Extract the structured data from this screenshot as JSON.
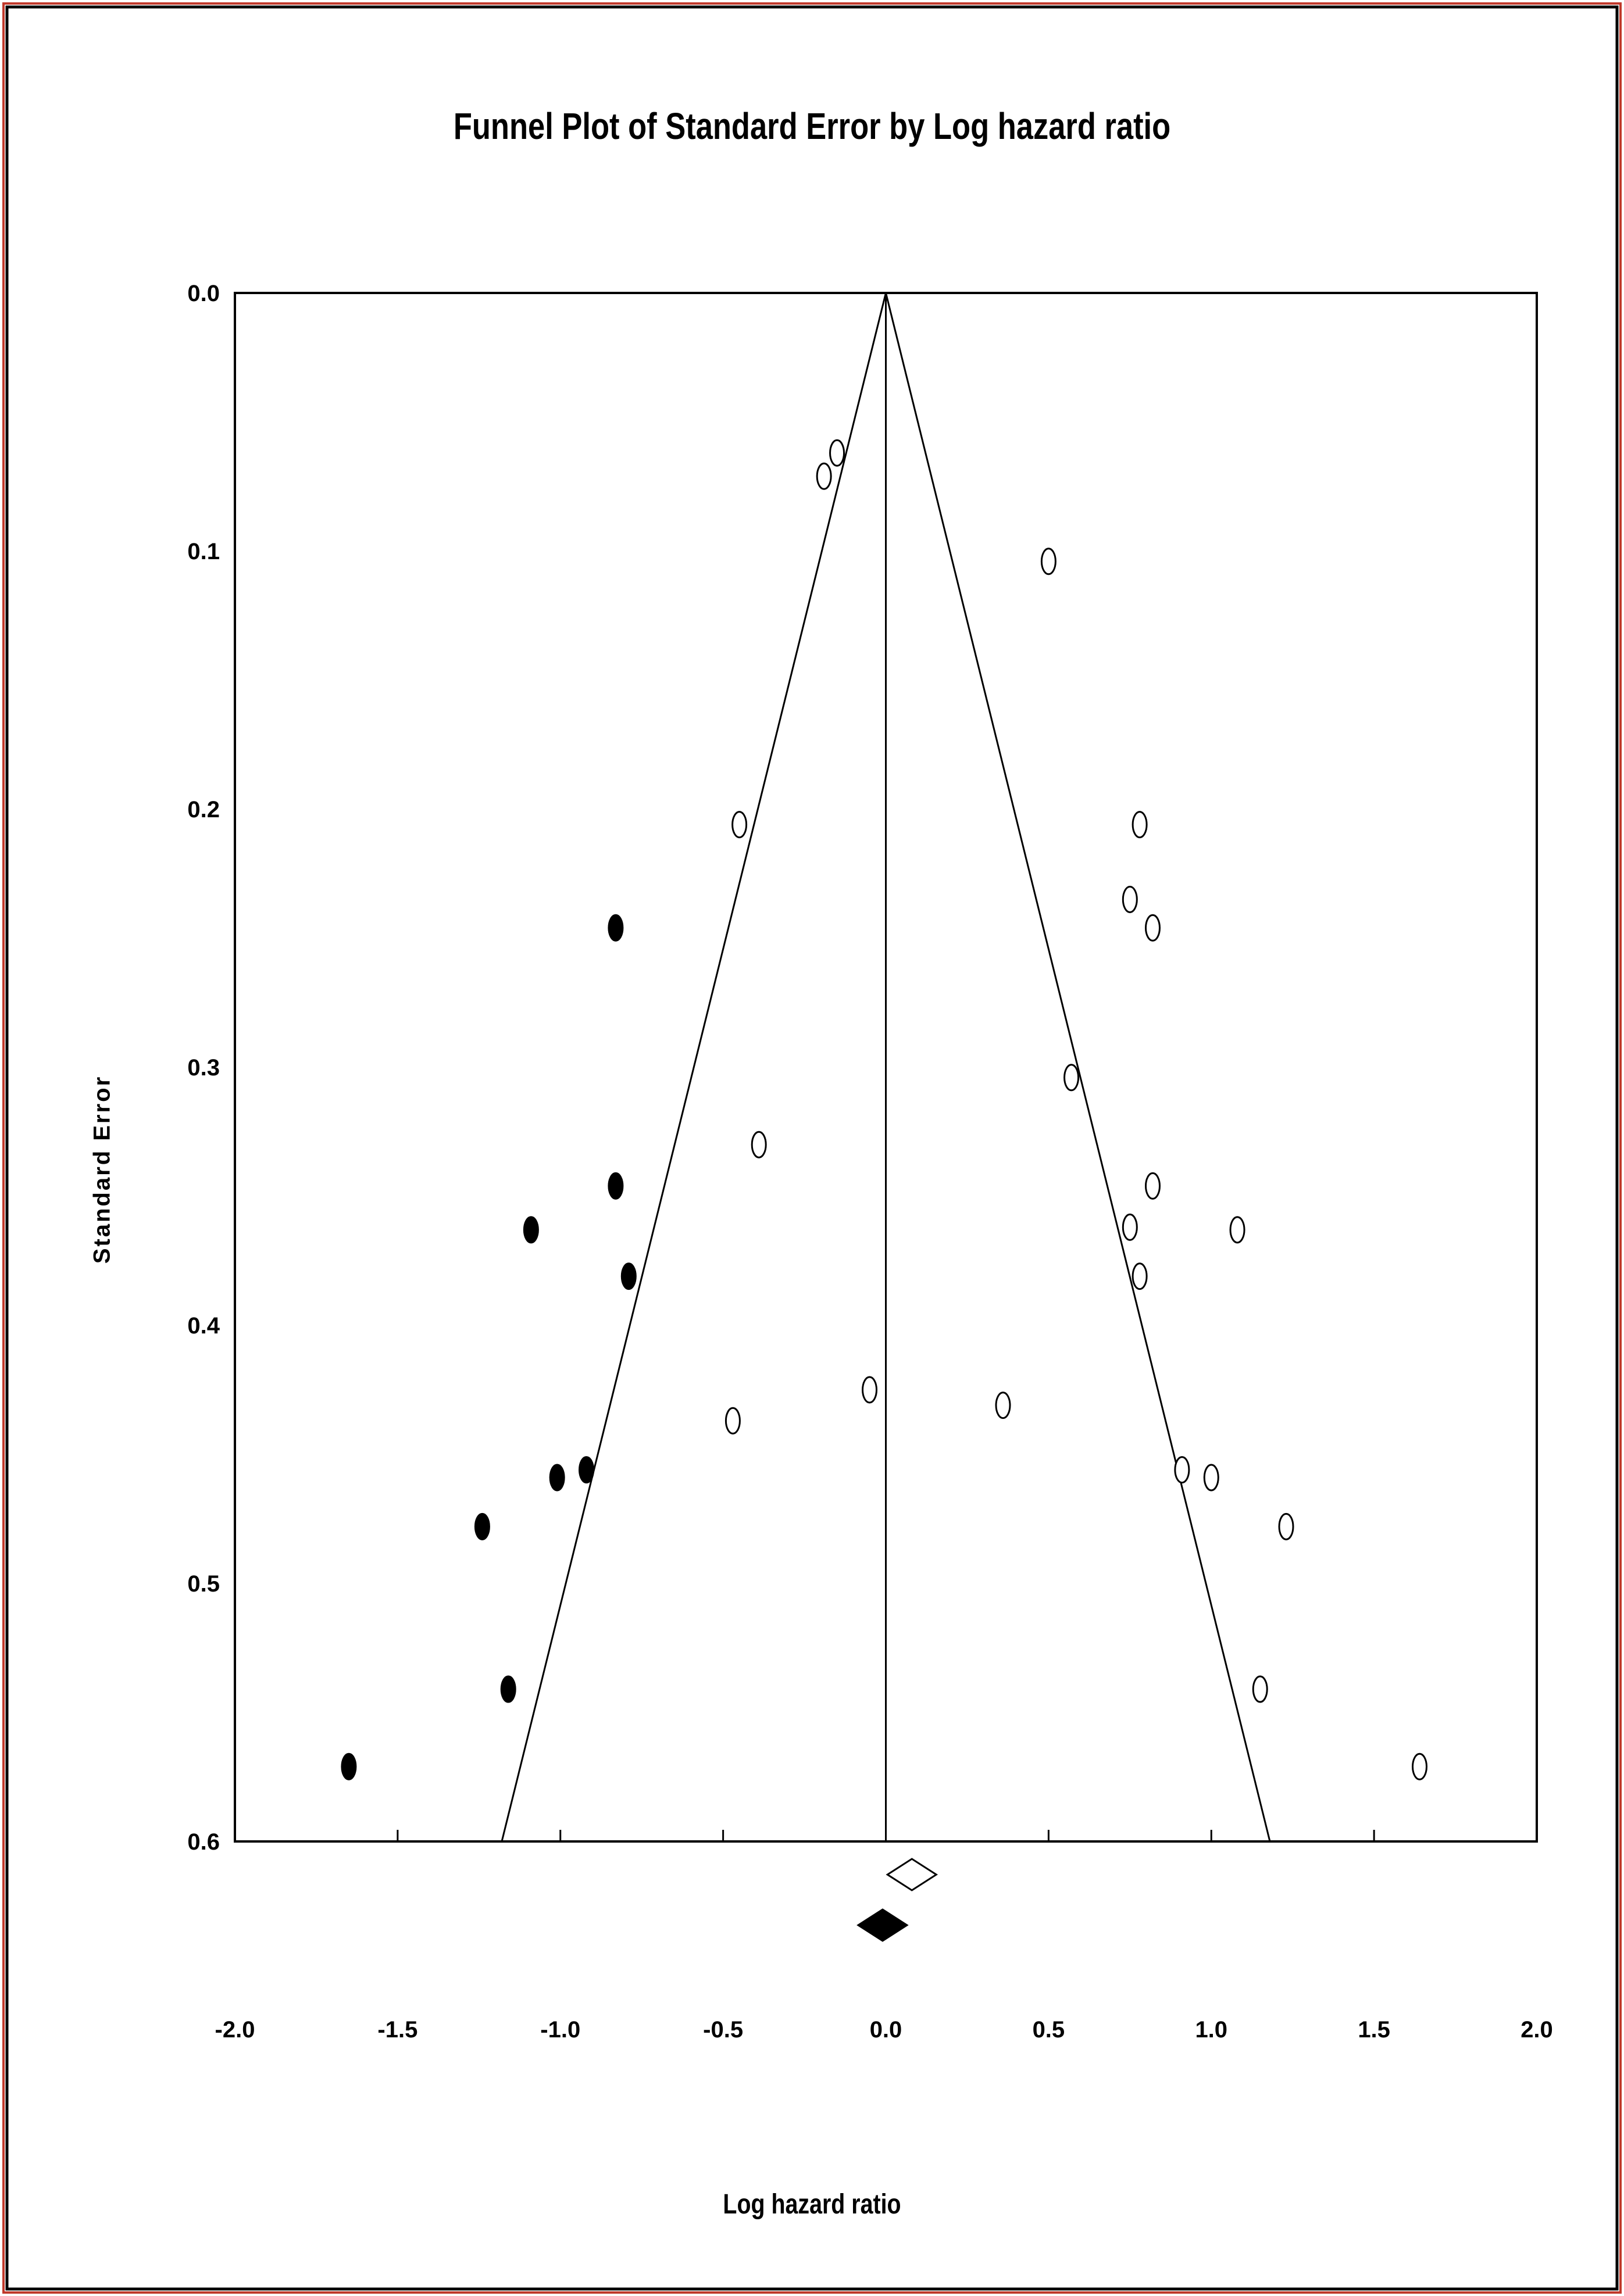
{
  "chart_data": {
    "type": "scatter",
    "title": "Funnel Plot of Standard Error by Log hazard ratio",
    "xlabel": "Log hazard ratio",
    "ylabel": "Standard Error",
    "xlim": [
      -2.0,
      2.0
    ],
    "ylim": [
      0.0,
      0.6
    ],
    "y_inverted": true,
    "x_ticks": [
      "-2.0",
      "-1.5",
      "-1.0",
      "-0.5",
      "0.0",
      "0.5",
      "1.0",
      "1.5",
      "2.0"
    ],
    "y_ticks": [
      "0.0",
      "0.1",
      "0.2",
      "0.3",
      "0.4",
      "0.5",
      "0.6"
    ],
    "grid": false,
    "colors": {
      "observed": "#ffffff",
      "imputed": "#000000",
      "line": "#000000",
      "frame": "#c0392b"
    },
    "series": [
      {
        "points": [
          {
            "x": -0.15,
            "y": 0.062
          },
          {
            "x": -0.19,
            "y": 0.071
          },
          {
            "x": 0.5,
            "y": 0.104
          },
          {
            "x": -0.45,
            "y": 0.206
          },
          {
            "x": 0.78,
            "y": 0.206
          },
          {
            "x": 0.75,
            "y": 0.235
          },
          {
            "x": 0.82,
            "y": 0.246
          },
          {
            "x": 0.57,
            "y": 0.304
          },
          {
            "x": -0.39,
            "y": 0.33
          },
          {
            "x": 0.82,
            "y": 0.346
          },
          {
            "x": 0.75,
            "y": 0.362
          },
          {
            "x": 1.08,
            "y": 0.363
          },
          {
            "x": 0.78,
            "y": 0.381
          },
          {
            "x": -0.05,
            "y": 0.425
          },
          {
            "x": 0.36,
            "y": 0.431
          },
          {
            "x": -0.47,
            "y": 0.437
          },
          {
            "x": 0.91,
            "y": 0.456
          },
          {
            "x": 1.0,
            "y": 0.459
          },
          {
            "x": 1.23,
            "y": 0.478
          },
          {
            "x": 1.15,
            "y": 0.541
          },
          {
            "x": 1.64,
            "y": 0.571
          }
        ]
      },
      {
        "points": [
          {
            "x": -0.83,
            "y": 0.246
          },
          {
            "x": -0.83,
            "y": 0.346
          },
          {
            "x": -1.09,
            "y": 0.363
          },
          {
            "x": -0.79,
            "y": 0.381
          },
          {
            "x": -0.92,
            "y": 0.456
          },
          {
            "x": -1.01,
            "y": 0.459
          },
          {
            "x": -1.24,
            "y": 0.478
          },
          {
            "x": -1.16,
            "y": 0.541
          },
          {
            "x": -1.65,
            "y": 0.571
          }
        ]
      }
    ],
    "funnel": {
      "apex": {
        "x": 0.0,
        "y": 0.0
      },
      "bottom_left_x": -1.18,
      "bottom_right_x": 1.18,
      "bottom_y": 0.6,
      "center_x": 0.0
    },
    "summary_diamonds": [
      {
        "fill": "open",
        "x": 0.08
      },
      {
        "fill": "filled",
        "x": -0.01
      }
    ]
  }
}
